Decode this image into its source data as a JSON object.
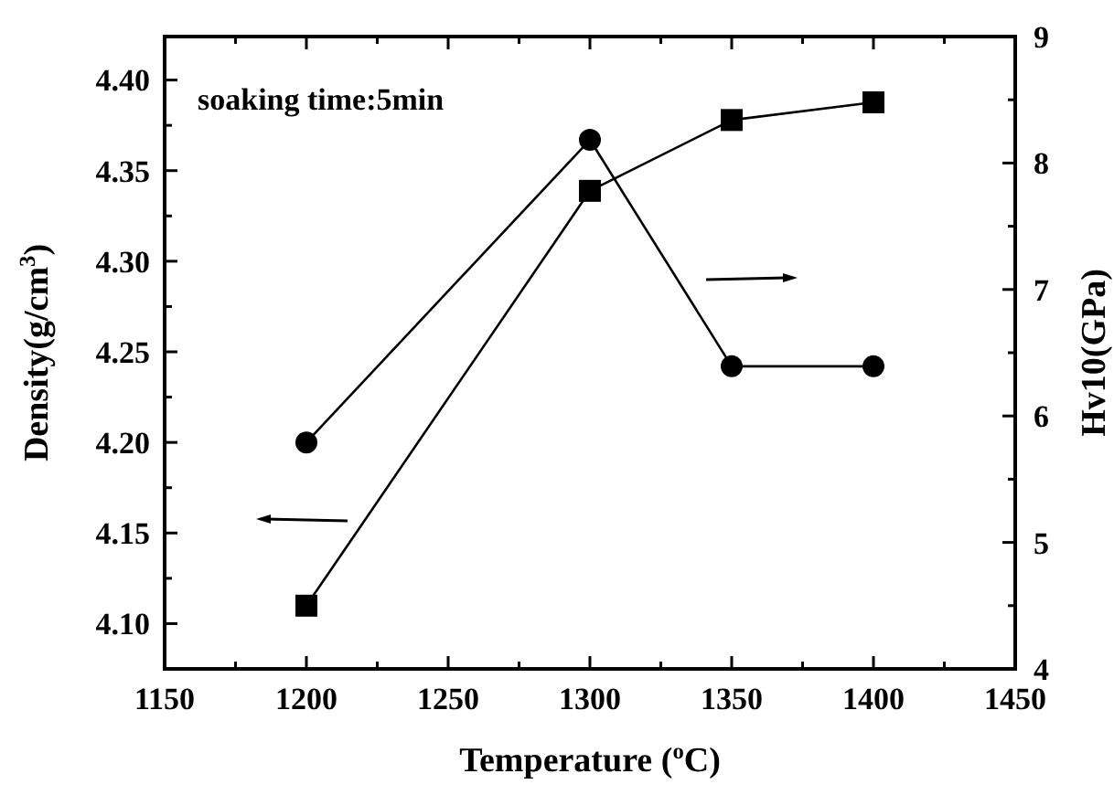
{
  "chart_data": {
    "type": "line",
    "xlabel": "Temperature ($^{o}$C)",
    "ylabel": "Density(g/cm$^{3}$)",
    "y2label": "Hv10(GPa)",
    "annotations": [
      "soaking time:5min"
    ],
    "x": [
      1200,
      1300,
      1350,
      1400
    ],
    "series": [
      {
        "color": "#000000",
        "marker": "circle",
        "values": [
          4.2,
          4.367,
          4.242,
          4.242
        ]
      },
      {
        "color": "#000000",
        "marker": "square",
        "axis": "y2",
        "values": [
          4.5,
          7.78,
          8.34,
          8.48
        ]
      }
    ],
    "xlim": [
      1150,
      1450
    ],
    "xticks": [
      1150,
      {
        "value": 1175,
        "label": null
      },
      1200,
      {
        "value": 1225,
        "label": null
      },
      1250,
      {
        "value": 1275,
        "label": null
      },
      1300,
      {
        "value": 1325,
        "label": null
      },
      1350,
      {
        "value": 1375,
        "label": null
      },
      1400,
      {
        "value": 1425,
        "label": null
      },
      1450
    ],
    "ylim": [
      4.075,
      4.424
    ],
    "yticks": [
      {
        "value": 4.1,
        "label": "4.10"
      },
      {
        "value": 4.125,
        "label": null
      },
      {
        "value": 4.15,
        "label": "4.15"
      },
      {
        "value": 4.175,
        "label": null
      },
      {
        "value": 4.2,
        "label": "4.20"
      },
      {
        "value": 4.225,
        "label": null
      },
      {
        "value": 4.25,
        "label": "4.25"
      },
      {
        "value": 4.275,
        "label": null
      },
      {
        "value": 4.3,
        "label": "4.30"
      },
      {
        "value": 4.325,
        "label": null
      },
      {
        "value": 4.35,
        "label": "4.35"
      },
      {
        "value": 4.375,
        "label": null
      },
      {
        "value": 4.4,
        "label": "4.40"
      }
    ],
    "y2lim": [
      4,
      9
    ],
    "y2ticks": [
      4,
      {
        "value": 4.5,
        "label": null
      },
      5,
      {
        "value": 5.5,
        "label": null
      },
      6,
      {
        "value": 6.5,
        "label": null
      },
      7,
      {
        "value": 7.5,
        "label": null
      },
      8,
      {
        "value": 8.5,
        "label": null
      },
      9
    ],
    "grid": false,
    "line_style": "solid"
  }
}
